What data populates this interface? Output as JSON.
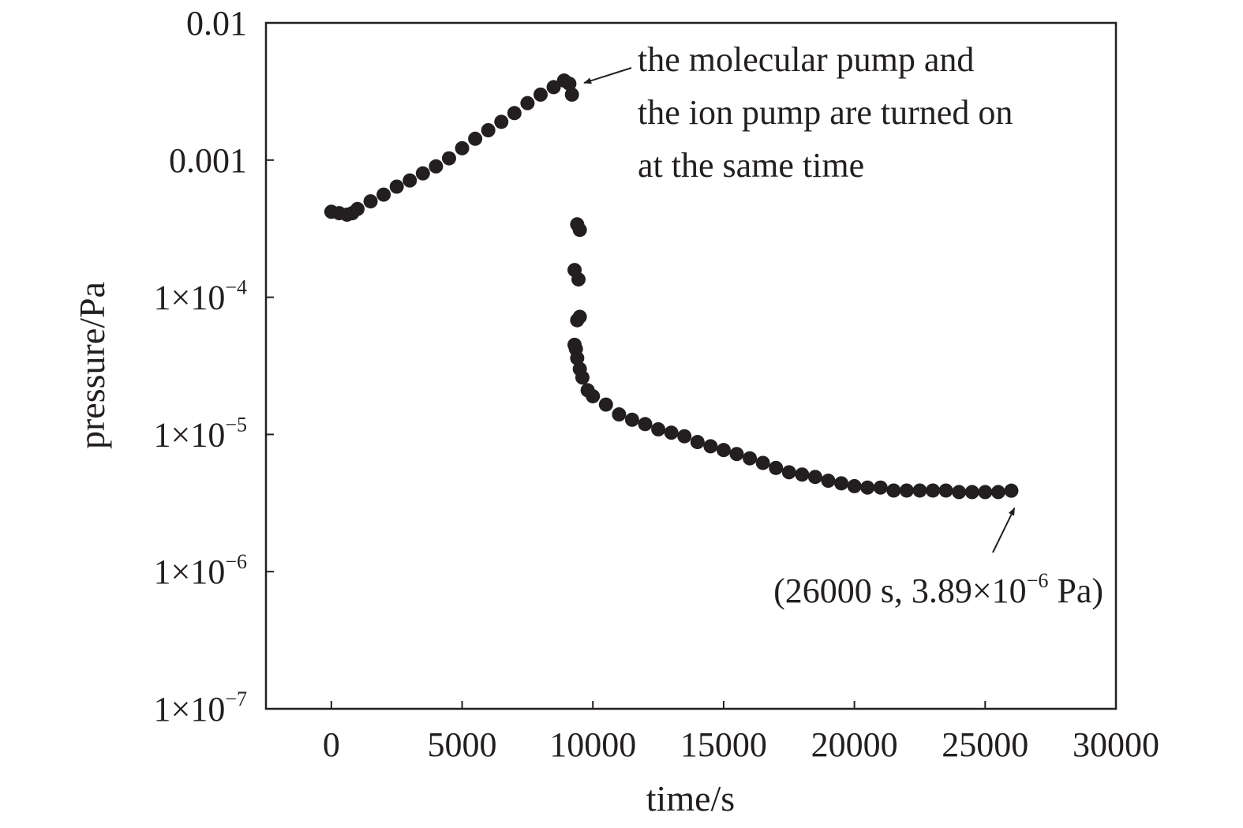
{
  "chart_data": {
    "type": "scatter",
    "title": "",
    "xlabel": "time/s",
    "ylabel": "pressure/Pa",
    "xlim": [
      -2500,
      30000
    ],
    "ylim": [
      1e-07,
      0.01
    ],
    "y_scale": "log",
    "grid": false,
    "x_ticks": [
      {
        "value": 0,
        "label": "0"
      },
      {
        "value": 5000,
        "label": "5000"
      },
      {
        "value": 10000,
        "label": "10000"
      },
      {
        "value": 15000,
        "label": "15000"
      },
      {
        "value": 20000,
        "label": "20000"
      },
      {
        "value": 25000,
        "label": "25000"
      },
      {
        "value": 30000,
        "label": "30000"
      }
    ],
    "y_ticks": [
      {
        "value": 0.01,
        "label": "0.01",
        "base": "",
        "exp": ""
      },
      {
        "value": 0.001,
        "label": "0.001",
        "base": "",
        "exp": ""
      },
      {
        "value": 0.0001,
        "label": "",
        "base": "1×10",
        "exp": "−4"
      },
      {
        "value": 1e-05,
        "label": "",
        "base": "1×10",
        "exp": "−5"
      },
      {
        "value": 1e-06,
        "label": "",
        "base": "1×10",
        "exp": "−6"
      },
      {
        "value": 1e-07,
        "label": "",
        "base": "1×10",
        "exp": "−7"
      }
    ],
    "series": [
      {
        "points": [
          [
            0,
            0.00042
          ],
          [
            300,
            0.00041
          ],
          [
            600,
            0.0004
          ],
          [
            800,
            0.00041
          ],
          [
            1000,
            0.00044
          ],
          [
            1500,
            0.0005
          ],
          [
            2000,
            0.00056
          ],
          [
            2500,
            0.00064
          ],
          [
            3000,
            0.00071
          ],
          [
            3500,
            0.0008
          ],
          [
            4000,
            0.0009
          ],
          [
            4500,
            0.00103
          ],
          [
            5000,
            0.00122
          ],
          [
            5500,
            0.00143
          ],
          [
            6000,
            0.00165
          ],
          [
            6500,
            0.0019
          ],
          [
            7000,
            0.0022
          ],
          [
            7500,
            0.0026
          ],
          [
            8000,
            0.003
          ],
          [
            8500,
            0.0034
          ],
          [
            8900,
            0.0038
          ],
          [
            9100,
            0.0036
          ],
          [
            9200,
            0.003
          ],
          [
            9400,
            0.00034
          ],
          [
            9500,
            0.00031
          ],
          [
            9300,
            0.000158
          ],
          [
            9450,
            0.000135
          ],
          [
            9400,
            6.8e-05
          ],
          [
            9500,
            7.2e-05
          ],
          [
            9300,
            4.5e-05
          ],
          [
            9350,
            4.2e-05
          ],
          [
            9400,
            3.6e-05
          ],
          [
            9500,
            3e-05
          ],
          [
            9600,
            2.6e-05
          ],
          [
            9800,
            2.1e-05
          ],
          [
            10000,
            1.9e-05
          ],
          [
            10500,
            1.65e-05
          ],
          [
            11000,
            1.4e-05
          ],
          [
            11500,
            1.28e-05
          ],
          [
            12000,
            1.19e-05
          ],
          [
            12500,
            1.09e-05
          ],
          [
            13000,
            1.03e-05
          ],
          [
            13500,
            9.7e-06
          ],
          [
            14000,
            8.8e-06
          ],
          [
            14500,
            8.2e-06
          ],
          [
            15000,
            7.7e-06
          ],
          [
            15500,
            7.2e-06
          ],
          [
            16000,
            6.7e-06
          ],
          [
            16500,
            6.2e-06
          ],
          [
            17000,
            5.7e-06
          ],
          [
            17500,
            5.3e-06
          ],
          [
            18000,
            5.1e-06
          ],
          [
            18500,
            4.9e-06
          ],
          [
            19000,
            4.6e-06
          ],
          [
            19500,
            4.4e-06
          ],
          [
            20000,
            4.2e-06
          ],
          [
            20500,
            4.1e-06
          ],
          [
            21000,
            4.1e-06
          ],
          [
            21500,
            3.9e-06
          ],
          [
            22000,
            3.9e-06
          ],
          [
            22500,
            3.9e-06
          ],
          [
            23000,
            3.9e-06
          ],
          [
            23500,
            3.9e-06
          ],
          [
            24000,
            3.8e-06
          ],
          [
            24500,
            3.8e-06
          ],
          [
            25000,
            3.8e-06
          ],
          [
            25500,
            3.8e-06
          ],
          [
            26000,
            3.89e-06
          ]
        ]
      }
    ],
    "annotations": [
      {
        "lines": [
          "the molecular pump and",
          "the ion pump are turned on",
          "at the same time"
        ],
        "x": 9000,
        "y": 0.0038
      },
      {
        "text_before": "(26000 s, 3.89×10",
        "exp": "−6",
        "text_after": " Pa)",
        "x": 26000,
        "y": 3.89e-06
      }
    ]
  }
}
